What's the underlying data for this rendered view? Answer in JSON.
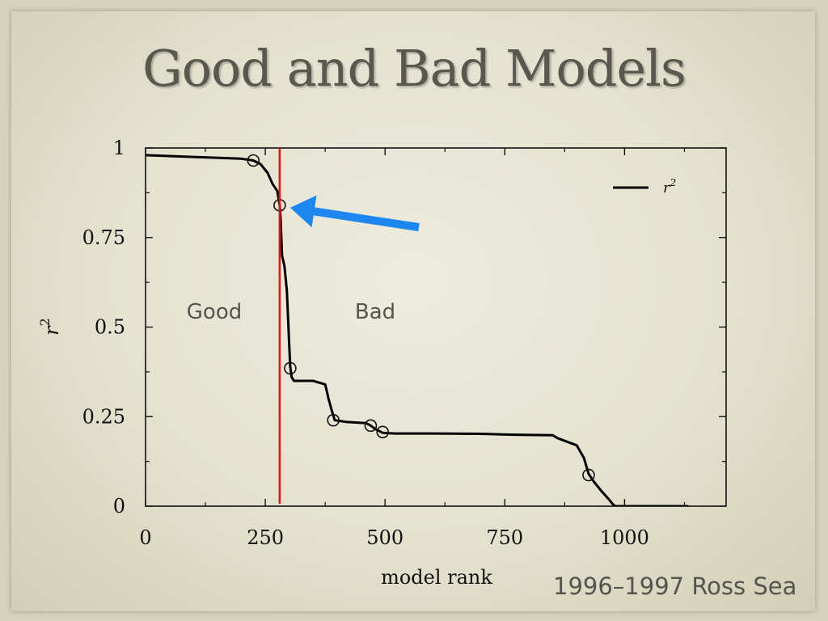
{
  "slide": {
    "title": "Good and Bad Models",
    "caption": "1996–1997 Ross Sea",
    "colors": {
      "background": "#e6e3d1",
      "title": "#58584e",
      "threshold_line": "#e0161b",
      "arrow": "#1e86ef",
      "curve": "#000000"
    }
  },
  "chart_data": {
    "type": "line",
    "xlabel": "model rank",
    "ylabel": "r",
    "ylabel_superscript": "2",
    "xlim": [
      0,
      1212
    ],
    "ylim": [
      0,
      1
    ],
    "x_ticks": [
      0,
      250,
      500,
      750,
      1000
    ],
    "x_tick_labels": [
      "0",
      "250",
      "500",
      "750",
      "1000"
    ],
    "y_ticks": [
      0,
      0.25,
      0.5,
      0.75,
      1
    ],
    "y_tick_labels": [
      "0",
      "0.25",
      "0.5",
      "0.75",
      "1"
    ],
    "grid": false,
    "legend": {
      "position": "top-right",
      "label": "r",
      "label_superscript": "2"
    },
    "series": [
      {
        "name": "r²",
        "x": [
          0,
          100,
          200,
          225,
          240,
          255,
          265,
          275,
          280,
          282,
          285,
          290,
          295,
          300,
          302,
          305,
          310,
          315,
          350,
          375,
          382,
          388,
          395,
          420,
          460,
          470,
          480,
          495,
          520,
          600,
          700,
          750,
          850,
          860,
          880,
          900,
          915,
          925,
          935,
          950,
          960,
          970,
          975,
          980,
          1000,
          1050,
          1133
        ],
        "y": [
          0.98,
          0.975,
          0.97,
          0.965,
          0.955,
          0.93,
          0.9,
          0.88,
          0.84,
          0.8,
          0.7,
          0.67,
          0.6,
          0.45,
          0.39,
          0.36,
          0.35,
          0.35,
          0.35,
          0.34,
          0.3,
          0.27,
          0.24,
          0.235,
          0.232,
          0.225,
          0.215,
          0.205,
          0.203,
          0.203,
          0.202,
          0.2,
          0.198,
          0.19,
          0.18,
          0.17,
          0.135,
          0.09,
          0.07,
          0.045,
          0.03,
          0.015,
          0.006,
          0.0,
          0.0,
          0.0,
          0.0
        ]
      }
    ],
    "markers": {
      "x": [
        225,
        280,
        302,
        392,
        470,
        495,
        925
      ],
      "y": [
        0.965,
        0.84,
        0.385,
        0.24,
        0.225,
        0.207,
        0.087
      ]
    },
    "threshold_x": 280,
    "annotations": {
      "region_left": "Good",
      "region_right": "Bad",
      "arrow_target_x": 280,
      "arrow_target_y": 0.84
    }
  }
}
